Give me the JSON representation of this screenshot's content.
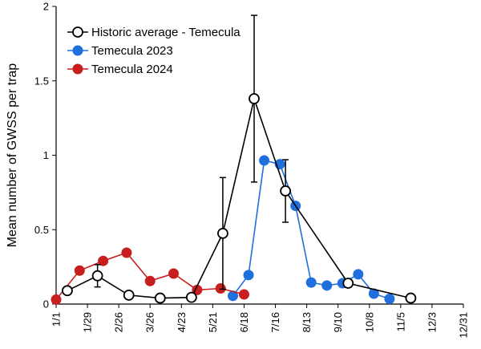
{
  "chart_data": {
    "type": "line",
    "xlabel": "",
    "ylabel": "Mean number of GWSS per trap",
    "xlim": [
      1,
      365
    ],
    "ylim": [
      0,
      2
    ],
    "x_ticks": [
      {
        "label": "1/1",
        "day": 1
      },
      {
        "label": "1/29",
        "day": 29
      },
      {
        "label": "2/26",
        "day": 57
      },
      {
        "label": "3/26",
        "day": 85
      },
      {
        "label": "4/23",
        "day": 113
      },
      {
        "label": "5/21",
        "day": 141
      },
      {
        "label": "6/18",
        "day": 169
      },
      {
        "label": "7/16",
        "day": 197
      },
      {
        "label": "8/13",
        "day": 225
      },
      {
        "label": "9/10",
        "day": 253
      },
      {
        "label": "10/8",
        "day": 281
      },
      {
        "label": "11/5",
        "day": 309
      },
      {
        "label": "12/3",
        "day": 337
      },
      {
        "label": "12/31",
        "day": 365
      }
    ],
    "y_ticks": [
      {
        "label": "0",
        "value": 0
      },
      {
        "label": "0.5",
        "value": 0.5
      },
      {
        "label": "1",
        "value": 1
      },
      {
        "label": "1.5",
        "value": 1.5
      },
      {
        "label": "2",
        "value": 2
      }
    ],
    "grid": false,
    "legend_position": "top-left",
    "series": [
      {
        "name": "Historic average - Temecula",
        "color": "#000000",
        "marker": "open-circle",
        "points": [
          {
            "x": 11,
            "y": 0.09
          },
          {
            "x": 38,
            "y": 0.19,
            "err": 0.075
          },
          {
            "x": 66,
            "y": 0.06
          },
          {
            "x": 94,
            "y": 0.04
          },
          {
            "x": 122,
            "y": 0.045
          },
          {
            "x": 150,
            "y": 0.475,
            "err": 0.375
          },
          {
            "x": 178,
            "y": 1.38,
            "err": 0.56
          },
          {
            "x": 206,
            "y": 0.76,
            "err": 0.21
          },
          {
            "x": 262,
            "y": 0.14
          },
          {
            "x": 318,
            "y": 0.04
          }
        ]
      },
      {
        "name": "Temecula 2023",
        "color": "#1f6fdc",
        "marker": "filled-circle",
        "points": [
          {
            "x": 159,
            "y": 0.055
          },
          {
            "x": 173,
            "y": 0.195
          },
          {
            "x": 187,
            "y": 0.965
          },
          {
            "x": 201,
            "y": 0.94
          },
          {
            "x": 215,
            "y": 0.66
          },
          {
            "x": 229,
            "y": 0.145
          },
          {
            "x": 243,
            "y": 0.125
          },
          {
            "x": 257,
            "y": 0.14
          },
          {
            "x": 271,
            "y": 0.2
          },
          {
            "x": 285,
            "y": 0.07
          },
          {
            "x": 299,
            "y": 0.035
          }
        ]
      },
      {
        "name": "Temecula 2024",
        "color": "#c81e1e",
        "marker": "filled-circle",
        "points": [
          {
            "x": 1,
            "y": 0.03
          },
          {
            "x": 22,
            "y": 0.225
          },
          {
            "x": 43,
            "y": 0.29
          },
          {
            "x": 64,
            "y": 0.345
          },
          {
            "x": 85,
            "y": 0.155
          },
          {
            "x": 106,
            "y": 0.205
          },
          {
            "x": 127,
            "y": 0.095
          },
          {
            "x": 148,
            "y": 0.105
          },
          {
            "x": 169,
            "y": 0.065
          }
        ]
      }
    ]
  }
}
